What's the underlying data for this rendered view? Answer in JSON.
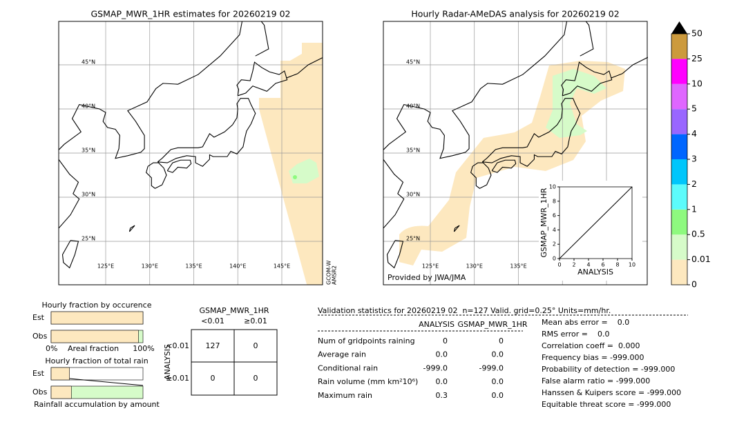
{
  "left_map": {
    "title": "GSMAP_MWR_1HR estimates for 20260219 02",
    "lat_labels": [
      "45°N",
      "40°N",
      "35°N",
      "30°N",
      "25°N"
    ],
    "lon_labels": [
      "125°E",
      "130°E",
      "135°E",
      "140°E",
      "145°E"
    ],
    "side_label": [
      "GCOM-W",
      "AMSR2"
    ]
  },
  "right_map": {
    "title": "Hourly Radar-AMeDAS analysis for 20260219 02",
    "lat_labels": [
      "45°N",
      "40°N",
      "35°N",
      "30°N",
      "25°N"
    ],
    "lon_labels": [
      "125°E",
      "130°E",
      "135°E"
    ],
    "credit": "Provided by JWA/JMA"
  },
  "colorbar": {
    "labels": [
      0,
      0.01,
      0.5,
      1,
      2,
      3,
      4,
      5,
      10,
      25,
      50
    ],
    "colors": [
      "#fde8bf",
      "#d6fbc9",
      "#8efa7f",
      "#5cfbfb",
      "#00c6fb",
      "#0066ff",
      "#9966ff",
      "#df66ff",
      "#ff00ff",
      "#cc9a3d"
    ]
  },
  "scatter": {
    "xlabel": "ANALYSIS",
    "ylabel": "GSMAP_MWR_1HR",
    "xlim": [
      0,
      10
    ],
    "ylim": [
      0,
      10
    ],
    "xticks": [
      0,
      2,
      4,
      6,
      8,
      10
    ],
    "yticks": [
      0,
      2,
      4,
      6,
      8,
      10
    ]
  },
  "fractions": {
    "occurrence_title": "Hourly fraction by occurence",
    "total_title": "Hourly fraction of total rain",
    "rows": [
      "Est",
      "Obs"
    ],
    "axis": [
      "0%",
      "Areal fraction",
      "100%"
    ],
    "bottom_label": "Rainfall accumulation by amount",
    "occurrence": {
      "est": 100,
      "obs": 95
    },
    "total_rain": {
      "est": 20,
      "obs": 22
    }
  },
  "contingency": {
    "title": "GSMAP_MWR_1HR",
    "cols": [
      "<0.01",
      "≥0.01"
    ],
    "rows": [
      "<0.01",
      "≥0.01"
    ],
    "row_title": "ANALYSIS",
    "cells": [
      [
        "127",
        "0"
      ],
      [
        "0",
        "0"
      ]
    ]
  },
  "validation": {
    "title": "Validation statistics for 20260219 02  n=127 Valid. grid=0.25° Units=mm/hr.",
    "headers": [
      "ANALYSIS",
      "GSMAP_MWR_1HR"
    ],
    "rows": [
      [
        "Num of gridpoints raining",
        "0",
        "0"
      ],
      [
        "Average rain",
        "0.0",
        "0.0"
      ],
      [
        "Conditional rain",
        "-999.0",
        "-999.0"
      ],
      [
        "Rain volume (mm km²10⁶)",
        "0.0",
        "0.0"
      ],
      [
        "Maximum rain",
        "0.3",
        "0.0"
      ]
    ],
    "scores": [
      "Mean abs error =    0.0",
      "RMS error =    0.0",
      "Correlation coeff =  0.000",
      "Frequency bias = -999.000",
      "Probability of detection = -999.000",
      "False alarm ratio = -999.000",
      "Hanssen & Kuipers score = -999.000",
      "Equitable threat score = -999.000"
    ]
  }
}
